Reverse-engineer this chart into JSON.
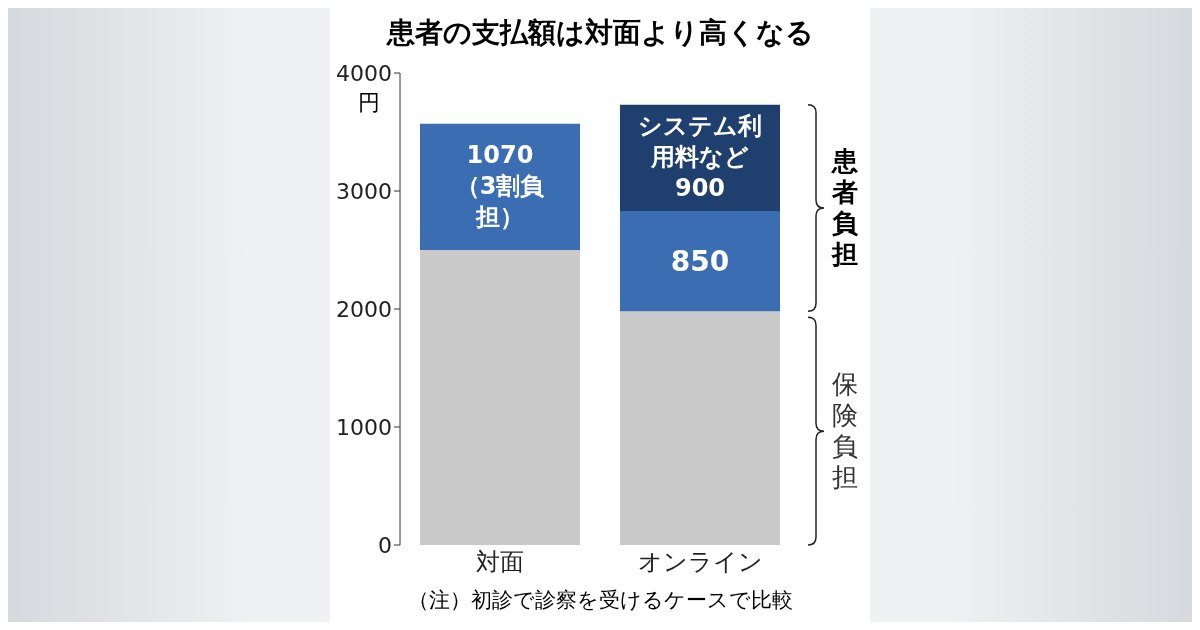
{
  "chart_data": {
    "type": "bar",
    "title": "患者の支払額は対面より高くなる",
    "ylabel": "円",
    "categories": [
      "対面",
      "オンライン"
    ],
    "stacked": true,
    "series": [
      {
        "color": "#c9c9c9",
        "values": [
          2500,
          1980
        ]
      },
      {
        "color": "#3b6db3",
        "values": [
          1070,
          850
        ],
        "value_labels": [
          "1070\n（3割負担）",
          "850"
        ]
      },
      {
        "color": "#1f3f6e",
        "values": [
          null,
          900
        ],
        "value_labels": [
          null,
          "システム利用料など 900"
        ]
      }
    ],
    "ylim": [
      0,
      4000
    ],
    "yticks": [
      0,
      1000,
      2000,
      3000,
      4000
    ],
    "annotations": [
      "患者負担",
      "保険負担",
      "（注）初診で診察を受けるケースで比較"
    ]
  }
}
